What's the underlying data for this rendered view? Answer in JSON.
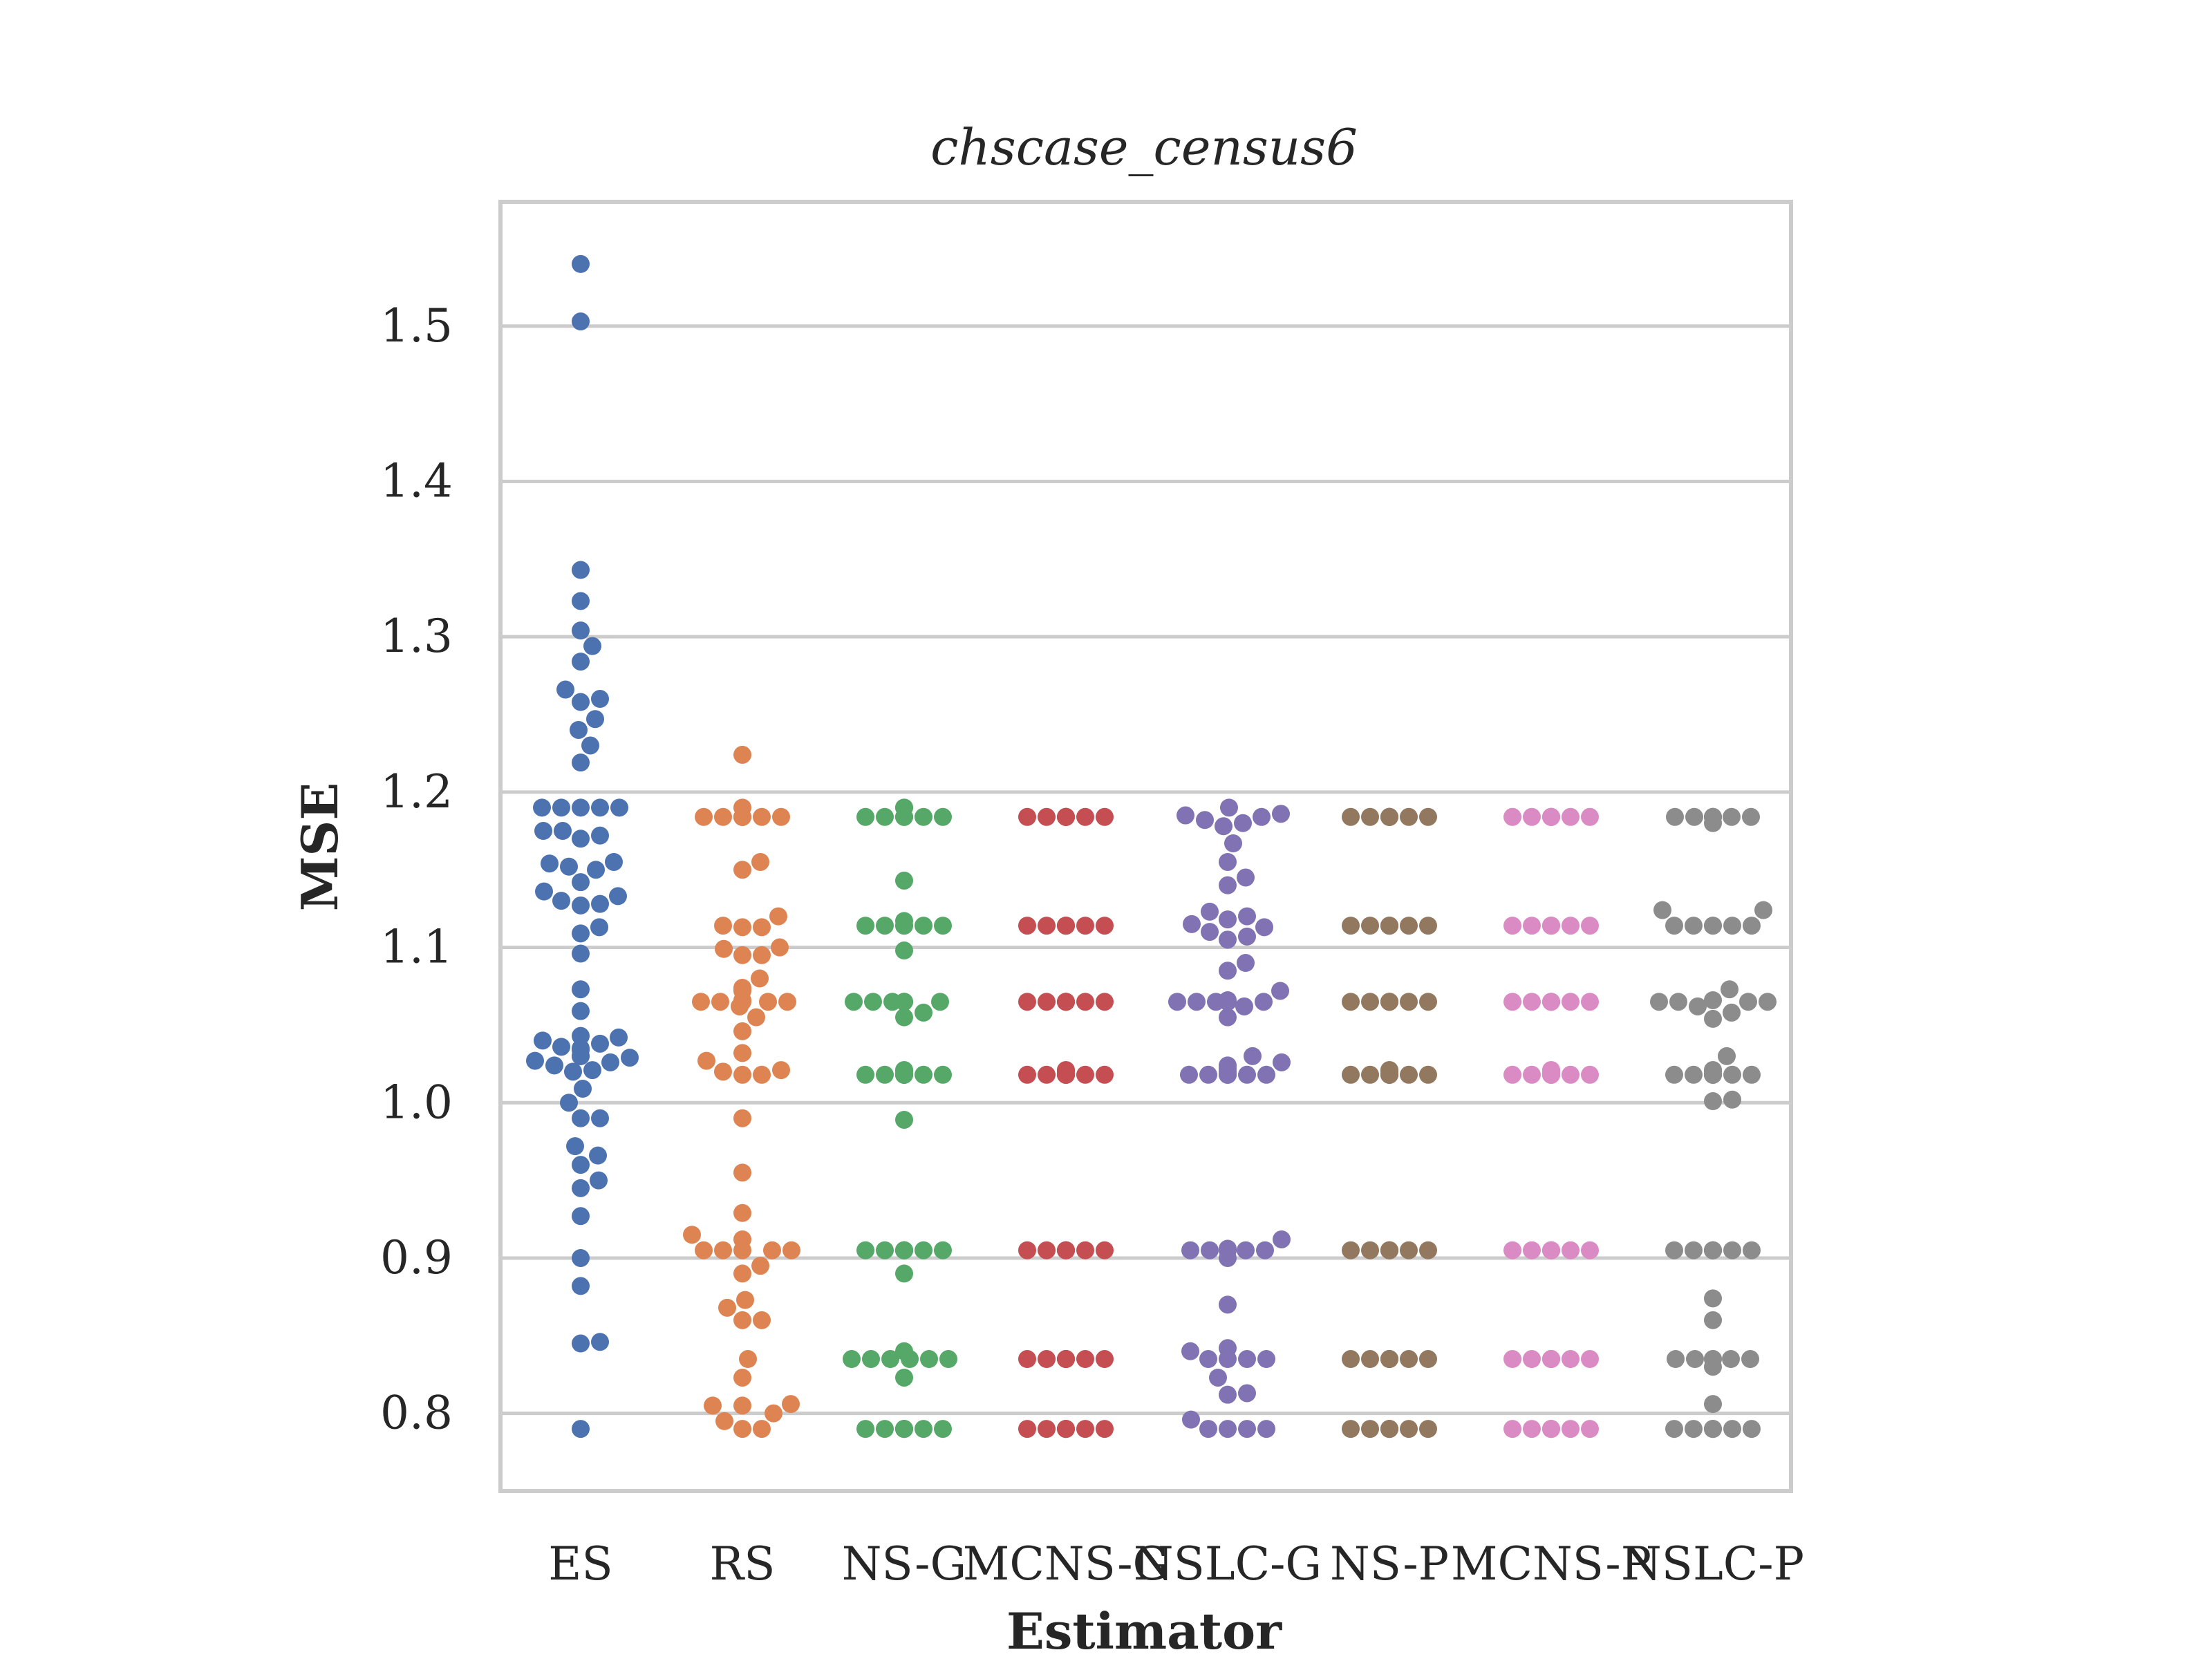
{
  "chart_data": {
    "type": "scatter",
    "subtype": "swarm",
    "title": "chscase_census6",
    "xlabel": "Estimator",
    "ylabel": "MSE",
    "ylim": [
      0.75,
      1.58
    ],
    "yticks": [
      0.8,
      0.9,
      1.0,
      1.1,
      1.2,
      1.3,
      1.4,
      1.5
    ],
    "ytick_labels": [
      "0.8",
      "0.9",
      "1.0",
      "1.1",
      "1.2",
      "1.3",
      "1.4",
      "1.5"
    ],
    "grid": "horizontal",
    "categories": [
      "ES",
      "RS",
      "NS-G",
      "MCNS-G",
      "NSLC-G",
      "NS-P",
      "MCNS-P",
      "NSLC-P"
    ],
    "series": [
      {
        "category": "ES",
        "color": "#4c72b0",
        "values": [
          1.54,
          1.503,
          1.343,
          1.323,
          1.304,
          1.294,
          1.284,
          1.266,
          1.26,
          1.258,
          1.247,
          1.24,
          1.23,
          1.219,
          1.19,
          1.19,
          1.19,
          1.19,
          1.19,
          1.175,
          1.175,
          1.172,
          1.17,
          1.155,
          1.154,
          1.152,
          1.15,
          1.142,
          1.136,
          1.133,
          1.13,
          1.128,
          1.127,
          1.113,
          1.109,
          1.096,
          1.073,
          1.059,
          1.043,
          1.042,
          1.04,
          1.038,
          1.036,
          1.035,
          1.034,
          1.03,
          1.03,
          1.029,
          1.027,
          1.026,
          1.024,
          1.021,
          1.02,
          1.009,
          1.0,
          0.99,
          0.99,
          0.972,
          0.966,
          0.96,
          0.95,
          0.945,
          0.927,
          0.9,
          0.882,
          0.846,
          0.845,
          0.79
        ]
      },
      {
        "category": "RS",
        "color": "#dd8452",
        "values": [
          1.224,
          1.19,
          1.184,
          1.184,
          1.184,
          1.184,
          1.184,
          1.184,
          1.184,
          1.184,
          1.155,
          1.15,
          1.12,
          1.114,
          1.113,
          1.113,
          1.1,
          1.099,
          1.095,
          1.095,
          1.08,
          1.074,
          1.073,
          1.072,
          1.066,
          1.065,
          1.065,
          1.065,
          1.065,
          1.065,
          1.062,
          1.055,
          1.046,
          1.032,
          1.027,
          1.021,
          1.02,
          1.018,
          1.018,
          0.99,
          0.955,
          0.929,
          0.915,
          0.912,
          0.905,
          0.905,
          0.905,
          0.905,
          0.905,
          0.895,
          0.89,
          0.873,
          0.868,
          0.86,
          0.86,
          0.835,
          0.823,
          0.806,
          0.805,
          0.805,
          0.8,
          0.795,
          0.79,
          0.79
        ]
      },
      {
        "category": "NS-G",
        "color": "#55a868",
        "values": [
          1.19,
          1.19,
          1.184,
          1.184,
          1.184,
          1.184,
          1.184,
          1.184,
          1.143,
          1.117,
          1.114,
          1.114,
          1.114,
          1.114,
          1.114,
          1.114,
          1.098,
          1.065,
          1.065,
          1.065,
          1.065,
          1.065,
          1.065,
          1.065,
          1.058,
          1.055,
          1.021,
          1.021,
          1.02,
          1.018,
          1.018,
          1.018,
          1.018,
          1.018,
          1.018,
          1.018,
          1.018,
          1.018,
          1.018,
          0.989,
          0.905,
          0.905,
          0.905,
          0.905,
          0.905,
          0.905,
          0.905,
          0.905,
          0.905,
          0.89,
          0.84,
          0.835,
          0.835,
          0.835,
          0.835,
          0.835,
          0.835,
          0.823,
          0.79,
          0.79,
          0.79,
          0.79,
          0.79,
          0.79,
          0.79,
          0.79
        ]
      },
      {
        "category": "MCNS-G",
        "color": "#c44e52",
        "values": [
          1.184,
          1.184,
          1.184,
          1.184,
          1.184,
          1.184,
          1.184,
          1.184,
          1.114,
          1.114,
          1.114,
          1.114,
          1.114,
          1.114,
          1.114,
          1.114,
          1.065,
          1.065,
          1.065,
          1.065,
          1.065,
          1.065,
          1.065,
          1.065,
          1.021,
          1.021,
          1.02,
          1.018,
          1.018,
          1.018,
          1.018,
          1.018,
          1.018,
          1.018,
          1.018,
          1.018,
          0.905,
          0.905,
          0.905,
          0.905,
          0.905,
          0.905,
          0.905,
          0.905,
          0.835,
          0.835,
          0.835,
          0.835,
          0.835,
          0.835,
          0.835,
          0.835,
          0.79,
          0.79,
          0.79,
          0.79,
          0.79,
          0.79,
          0.79,
          0.79
        ]
      },
      {
        "category": "NSLC-G",
        "color": "#8172b3",
        "values": [
          1.19,
          1.186,
          1.185,
          1.184,
          1.182,
          1.18,
          1.178,
          1.167,
          1.155,
          1.145,
          1.14,
          1.123,
          1.12,
          1.118,
          1.115,
          1.113,
          1.11,
          1.107,
          1.105,
          1.09,
          1.085,
          1.072,
          1.066,
          1.065,
          1.065,
          1.065,
          1.065,
          1.065,
          1.065,
          1.062,
          1.055,
          1.03,
          1.026,
          1.024,
          1.022,
          1.02,
          1.018,
          1.018,
          1.018,
          1.018,
          1.018,
          1.018,
          1.018,
          0.912,
          0.906,
          0.905,
          0.905,
          0.905,
          0.905,
          0.905,
          0.905,
          0.9,
          0.87,
          0.842,
          0.84,
          0.835,
          0.835,
          0.835,
          0.835,
          0.823,
          0.813,
          0.812,
          0.796,
          0.79,
          0.79,
          0.79,
          0.79
        ]
      },
      {
        "category": "NS-P",
        "color": "#937860",
        "values": [
          1.184,
          1.184,
          1.184,
          1.184,
          1.184,
          1.184,
          1.184,
          1.184,
          1.114,
          1.114,
          1.114,
          1.114,
          1.114,
          1.114,
          1.114,
          1.114,
          1.065,
          1.065,
          1.065,
          1.065,
          1.065,
          1.065,
          1.065,
          1.065,
          1.021,
          1.021,
          1.02,
          1.018,
          1.018,
          1.018,
          1.018,
          1.018,
          1.018,
          1.018,
          1.018,
          1.018,
          0.905,
          0.905,
          0.905,
          0.905,
          0.905,
          0.905,
          0.905,
          0.905,
          0.835,
          0.835,
          0.835,
          0.835,
          0.835,
          0.835,
          0.835,
          0.835,
          0.79,
          0.79,
          0.79,
          0.79,
          0.79,
          0.79,
          0.79,
          0.79
        ]
      },
      {
        "category": "MCNS-P",
        "color": "#da8bc3",
        "values": [
          1.184,
          1.184,
          1.184,
          1.184,
          1.184,
          1.184,
          1.184,
          1.184,
          1.114,
          1.114,
          1.114,
          1.114,
          1.114,
          1.114,
          1.114,
          1.114,
          1.065,
          1.065,
          1.065,
          1.065,
          1.065,
          1.065,
          1.065,
          1.065,
          1.021,
          1.021,
          1.02,
          1.018,
          1.018,
          1.018,
          1.018,
          1.018,
          1.018,
          1.018,
          1.018,
          1.018,
          0.905,
          0.905,
          0.905,
          0.905,
          0.905,
          0.905,
          0.905,
          0.905,
          0.835,
          0.835,
          0.835,
          0.835,
          0.835,
          0.835,
          0.835,
          0.835,
          0.79,
          0.79,
          0.79,
          0.79,
          0.79,
          0.79,
          0.79,
          0.79
        ]
      },
      {
        "category": "NSLC-P",
        "color": "#8c8c8c",
        "values": [
          1.184,
          1.184,
          1.184,
          1.184,
          1.184,
          1.184,
          1.184,
          1.18,
          1.124,
          1.124,
          1.114,
          1.114,
          1.114,
          1.114,
          1.114,
          1.114,
          1.073,
          1.066,
          1.065,
          1.065,
          1.065,
          1.065,
          1.062,
          1.058,
          1.054,
          1.03,
          1.021,
          1.021,
          1.02,
          1.018,
          1.018,
          1.018,
          1.018,
          1.018,
          1.018,
          1.018,
          1.018,
          1.002,
          1.001,
          0.905,
          0.905,
          0.905,
          0.905,
          0.905,
          0.905,
          0.905,
          0.905,
          0.874,
          0.86,
          0.835,
          0.835,
          0.835,
          0.835,
          0.835,
          0.835,
          0.83,
          0.806,
          0.79,
          0.79,
          0.79,
          0.79,
          0.79,
          0.79,
          0.79
        ]
      }
    ]
  }
}
